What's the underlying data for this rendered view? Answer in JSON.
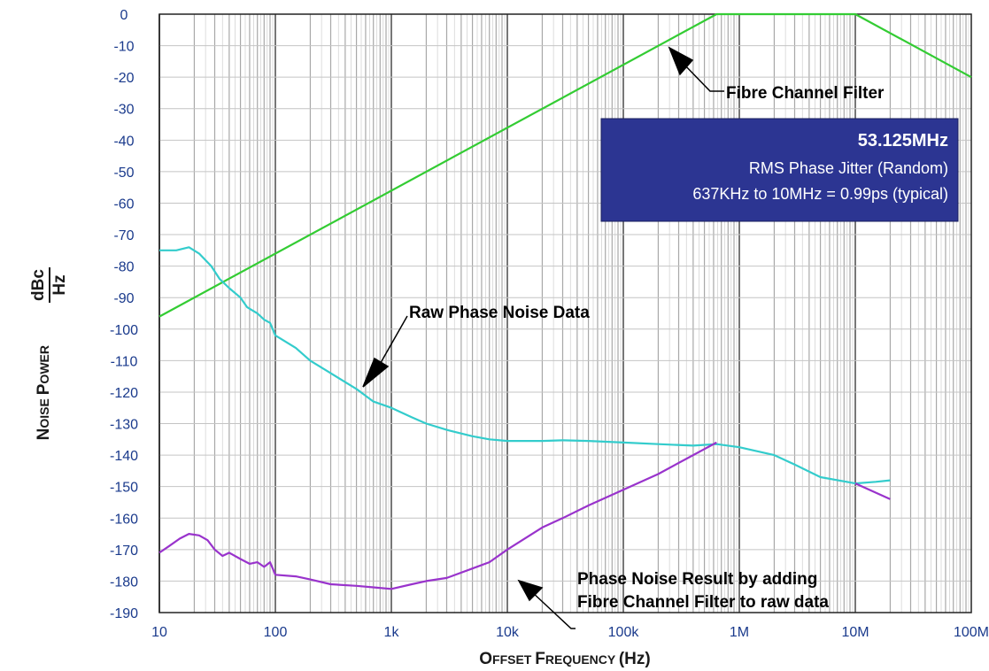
{
  "chart_data": {
    "type": "line",
    "x_scale": "log",
    "xlim": [
      10,
      100000000
    ],
    "ylim": [
      -190,
      0
    ],
    "grid": true,
    "x_tick_labels": [
      "10",
      "100",
      "1k",
      "10k",
      "100k",
      "1M",
      "10M",
      "100M"
    ],
    "x_tick_values": [
      10,
      100,
      1000,
      10000,
      100000,
      1000000,
      10000000,
      100000000
    ],
    "y_ticks": [
      0,
      -10,
      -20,
      -30,
      -40,
      -50,
      -60,
      -70,
      -80,
      -90,
      -100,
      -110,
      -120,
      -130,
      -140,
      -150,
      -160,
      -170,
      -180,
      -190
    ],
    "xlabel": {
      "prefix_big": "O",
      "prefix_small": "FFSET ",
      "mid_big": "F",
      "mid_small": "REQUENCY ",
      "suffix": "(Hz)"
    },
    "ylabel": {
      "w1_big": "N",
      "w1_small": "OISE ",
      "w2_big": "P",
      "w2_small": "OWER",
      "frac_num": "dBc",
      "frac_den": "Hz"
    },
    "series": [
      {
        "color": "#33cc33",
        "x": [
          10,
          637000,
          10000000,
          100000000
        ],
        "y": [
          -96,
          0,
          0,
          -20
        ]
      },
      {
        "color": "#33cccc",
        "x": [
          10,
          14,
          18,
          22,
          28,
          33,
          40,
          50,
          57,
          63,
          70,
          80,
          90,
          100,
          150,
          200,
          300,
          500,
          700,
          1000,
          1500,
          2000,
          3000,
          5000,
          7000,
          10000,
          20000,
          30000,
          50000,
          100000,
          200000,
          400000,
          637000,
          1000000,
          2000000,
          3000000,
          5000000,
          10000000,
          15000000,
          20000000
        ],
        "y": [
          -75,
          -75,
          -74,
          -76,
          -80,
          -84,
          -87,
          -90,
          -93,
          -94,
          -95,
          -97,
          -98,
          -102,
          -106,
          -110,
          -114,
          -119,
          -123,
          -125,
          -128,
          -130,
          -132,
          -134,
          -135,
          -135.5,
          -135.5,
          -135.3,
          -135.5,
          -136,
          -136.5,
          -137,
          -136.5,
          -137.5,
          -140,
          -143,
          -147,
          -149,
          -148.5,
          -148
        ]
      },
      {
        "color": "#9933cc",
        "x": [
          10,
          12,
          15,
          18,
          22,
          26,
          30,
          35,
          40,
          50,
          60,
          70,
          80,
          90,
          100,
          150,
          200,
          300,
          500,
          700,
          1000,
          1500,
          2000,
          3000,
          5000,
          7000,
          10000,
          20000,
          30000,
          50000,
          100000,
          200000,
          400000,
          637000
        ],
        "y": [
          -171,
          -169,
          -166.5,
          -165,
          -165.5,
          -167,
          -170,
          -172,
          -171,
          -173,
          -174.5,
          -174,
          -175.5,
          -174,
          -178,
          -178.5,
          -179.5,
          -181,
          -181.5,
          -182,
          -182.5,
          -181,
          -180,
          -179,
          -176,
          -174,
          -170,
          -163,
          -160,
          -156,
          -151,
          -146,
          -140,
          -136
        ]
      },
      {
        "color": "#9933cc",
        "x": [
          10000000,
          20000000
        ],
        "y": [
          -149,
          -154
        ]
      }
    ],
    "annotations": [
      {
        "id": "fc",
        "text": "Fibre Channel Filter"
      },
      {
        "id": "raw",
        "text": "Raw Phase Noise Data"
      },
      {
        "id": "res1",
        "text": "Phase Noise Result by adding"
      },
      {
        "id": "res2",
        "text": "Fibre Channel Filter to raw data"
      }
    ],
    "info_box": {
      "title": "53.125MHz",
      "line1": "RMS Phase Jitter (Random)",
      "line2": "637KHz to 10MHz = 0.99ps (typical)",
      "bg": "#2c3592"
    }
  }
}
